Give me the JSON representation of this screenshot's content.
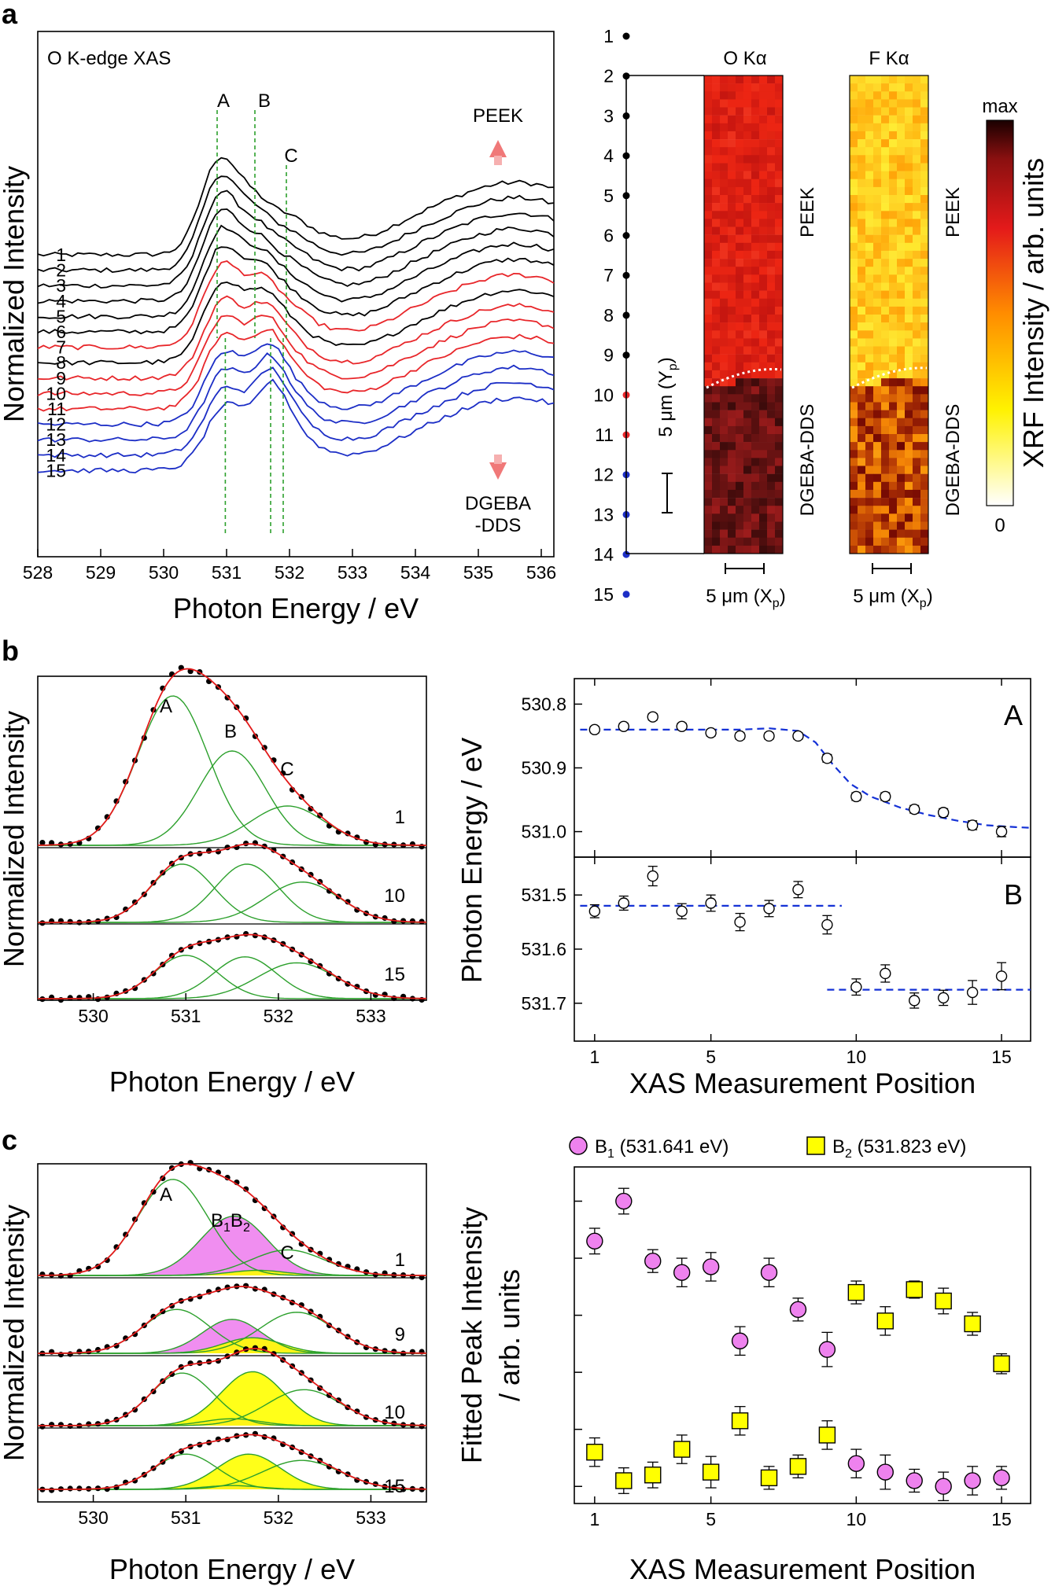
{
  "panel_labels": [
    "a",
    "b",
    "c"
  ],
  "colors": {
    "black": "#000000",
    "red": "#e8262a",
    "blue": "#1c2ec6",
    "green": "#2ca02c",
    "fit": "#e21a1a",
    "magenta": "#ee82ee",
    "yellow": "#ffff00",
    "dash": "#1431d6"
  },
  "chart_data": [
    {
      "id": "a_xas",
      "type": "line",
      "title": "O K-edge XAS",
      "xlabel": "Photon Energy / eV",
      "ylabel": "Normalized Intensity",
      "xlim": [
        528.0,
        536.2
      ],
      "xticks": [
        528,
        529,
        530,
        531,
        532,
        533,
        534,
        535,
        536
      ],
      "spectra_labels": [
        "1",
        "2",
        "3",
        "4",
        "5",
        "6",
        "7",
        "8",
        "9",
        "10",
        "11",
        "12",
        "13",
        "14",
        "15"
      ],
      "spectra_colors": [
        "black",
        "black",
        "black",
        "black",
        "black",
        "black",
        "red",
        "black",
        "red",
        "red",
        "red",
        "blue",
        "blue",
        "blue",
        "blue"
      ],
      "peak_labels": [
        "A",
        "B",
        "C"
      ],
      "peak_positions_upper": [
        530.85,
        531.45,
        531.95
      ],
      "peak_positions_lower": [
        530.98,
        531.7,
        531.9
      ],
      "arrow_up_label": "PEEK",
      "arrow_down_label_1": "DGEBA",
      "arrow_down_label_2": "-DDS"
    },
    {
      "id": "a_maps",
      "type": "heatmap",
      "maps": [
        {
          "title": "O Kα",
          "palette": "red-dark"
        },
        {
          "title": "F Kα",
          "palette": "yellow-red"
        }
      ],
      "positions": [
        "1",
        "2",
        "3",
        "4",
        "5",
        "6",
        "7",
        "8",
        "9",
        "10",
        "11",
        "12",
        "13",
        "14",
        "15"
      ],
      "position_colors": [
        "black",
        "black",
        "black",
        "black",
        "black",
        "black",
        "black",
        "black",
        "black",
        "red",
        "red",
        "blue",
        "blue",
        "blue",
        "blue"
      ],
      "region_upper": "PEEK",
      "region_lower": "DGEBA-DDS",
      "scalebar_y_label": "5 μm (Y",
      "scalebar_y_sub": "p",
      "scalebar_x_label": "5 μm (X",
      "scalebar_x_sub": "p",
      "colorbar_label": "XRF Intensity / arb. units",
      "colorbar_max": "max",
      "colorbar_min": "0"
    },
    {
      "id": "b_fit",
      "type": "line",
      "xlabel": "Photon Energy / eV",
      "ylabel": "Normalized Intensity",
      "xlim": [
        529.4,
        533.6
      ],
      "xticks": [
        530,
        531,
        532,
        533
      ],
      "peak_labels": [
        "A",
        "B",
        "C"
      ],
      "spectra": [
        {
          "label": "1",
          "peaks": [
            {
              "center": 530.86,
              "height": 0.95,
              "width": 0.38
            },
            {
              "center": 531.5,
              "height": 0.6,
              "width": 0.36
            },
            {
              "center": 532.1,
              "height": 0.25,
              "width": 0.4
            }
          ]
        },
        {
          "label": "10",
          "peaks": [
            {
              "center": 530.96,
              "height": 0.78,
              "width": 0.34
            },
            {
              "center": 531.66,
              "height": 0.78,
              "width": 0.34
            },
            {
              "center": 532.26,
              "height": 0.54,
              "width": 0.4
            }
          ]
        },
        {
          "label": "15",
          "peaks": [
            {
              "center": 531.0,
              "height": 0.58,
              "width": 0.34
            },
            {
              "center": 531.64,
              "height": 0.56,
              "width": 0.34
            },
            {
              "center": 532.2,
              "height": 0.48,
              "width": 0.42
            }
          ]
        }
      ]
    },
    {
      "id": "b_positions",
      "type": "scatter",
      "xlabel": "XAS Measurement Position",
      "ylabel": "Photon Energy / eV",
      "xlim": [
        0.3,
        16.0
      ],
      "xticks": [
        1,
        5,
        10,
        15
      ],
      "top": {
        "label": "A",
        "ylim": [
          530.76,
          531.04
        ],
        "yticks": [
          "530.8",
          "530.9",
          "531.0"
        ],
        "ytick_values": [
          530.8,
          530.9,
          531.0
        ],
        "x": [
          1,
          2,
          3,
          4,
          5,
          6,
          7,
          8,
          9,
          10,
          11,
          12,
          13,
          14,
          15
        ],
        "y": [
          530.84,
          530.835,
          530.82,
          530.835,
          530.845,
          530.85,
          530.85,
          530.85,
          530.885,
          530.945,
          530.945,
          530.965,
          530.97,
          530.99,
          531.0
        ],
        "err": [
          0.005,
          0.005,
          0.005,
          0.005,
          0.005,
          0.005,
          0.005,
          0.005,
          0.006,
          0.006,
          0.006,
          0.006,
          0.006,
          0.007,
          0.008
        ],
        "fit_x": [
          0.5,
          1,
          2,
          3,
          4,
          5,
          6,
          7,
          8,
          8.6,
          9.2,
          9.8,
          10.5,
          11.5,
          12.5,
          13.5,
          14.5,
          15.5,
          16
        ],
        "fit_y": [
          530.84,
          530.84,
          530.84,
          530.84,
          530.84,
          530.84,
          530.84,
          530.838,
          530.842,
          530.86,
          530.895,
          530.925,
          530.945,
          530.962,
          530.974,
          530.983,
          530.99,
          530.993,
          530.994
        ]
      },
      "bottom": {
        "label": "B",
        "ylim": [
          531.43,
          531.77
        ],
        "yticks": [
          "531.5",
          "531.6",
          "531.7"
        ],
        "ytick_values": [
          531.5,
          531.6,
          531.7
        ],
        "x": [
          1,
          2,
          3,
          4,
          5,
          6,
          7,
          8,
          9,
          10,
          11,
          12,
          13,
          14,
          15
        ],
        "y": [
          531.53,
          531.515,
          531.465,
          531.53,
          531.515,
          531.55,
          531.525,
          531.49,
          531.555,
          531.67,
          531.645,
          531.695,
          531.69,
          531.68,
          531.65
        ],
        "err": [
          0.012,
          0.013,
          0.018,
          0.014,
          0.015,
          0.016,
          0.015,
          0.015,
          0.017,
          0.015,
          0.016,
          0.014,
          0.014,
          0.022,
          0.025
        ],
        "fit1_x": [
          0.5,
          9.5
        ],
        "fit1_y": [
          531.52,
          531.52
        ],
        "fit2_x": [
          9.0,
          16.0
        ],
        "fit2_y": [
          531.675,
          531.675
        ]
      }
    },
    {
      "id": "c_fit",
      "type": "line",
      "xlabel": "Photon Energy / eV",
      "ylabel": "Normalized Intensity",
      "xlim": [
        529.4,
        533.6
      ],
      "xticks": [
        530,
        531,
        532,
        533
      ],
      "peak_labels": [
        "A",
        "B1",
        "B2",
        "C"
      ],
      "spectra": [
        {
          "label": "1",
          "peaks": [
            {
              "center": 530.86,
              "height": 0.94,
              "width": 0.38,
              "fill": "none"
            },
            {
              "center": 531.52,
              "height": 0.58,
              "width": 0.36,
              "fill": "magenta"
            },
            {
              "center": 531.78,
              "height": 0.05,
              "width": 0.3,
              "fill": "yellow"
            },
            {
              "center": 532.1,
              "height": 0.25,
              "width": 0.4,
              "fill": "none"
            }
          ]
        },
        {
          "label": "9",
          "peaks": [
            {
              "center": 530.9,
              "height": 0.62,
              "width": 0.36,
              "fill": "none"
            },
            {
              "center": 531.5,
              "height": 0.48,
              "width": 0.32,
              "fill": "magenta"
            },
            {
              "center": 531.72,
              "height": 0.22,
              "width": 0.32,
              "fill": "yellow"
            },
            {
              "center": 532.2,
              "height": 0.58,
              "width": 0.4,
              "fill": "none"
            }
          ]
        },
        {
          "label": "10",
          "peaks": [
            {
              "center": 530.96,
              "height": 0.76,
              "width": 0.34,
              "fill": "none"
            },
            {
              "center": 531.5,
              "height": 0.1,
              "width": 0.3,
              "fill": "magenta"
            },
            {
              "center": 531.72,
              "height": 0.78,
              "width": 0.34,
              "fill": "yellow"
            },
            {
              "center": 532.28,
              "height": 0.52,
              "width": 0.4,
              "fill": "none"
            }
          ]
        },
        {
          "label": "15",
          "peaks": [
            {
              "center": 531.0,
              "height": 0.56,
              "width": 0.34,
              "fill": "none"
            },
            {
              "center": 531.5,
              "height": 0.06,
              "width": 0.3,
              "fill": "magenta"
            },
            {
              "center": 531.68,
              "height": 0.56,
              "width": 0.34,
              "fill": "yellow"
            },
            {
              "center": 532.25,
              "height": 0.46,
              "width": 0.42,
              "fill": "none"
            }
          ]
        }
      ]
    },
    {
      "id": "c_intensity",
      "type": "scatter",
      "xlabel": "XAS Measurement Position",
      "ylabel_line1": "Fitted Peak Intensity",
      "ylabel_line2": "/ arb. units",
      "xlim": [
        0.3,
        16.0
      ],
      "xticks": [
        1,
        5,
        10,
        15
      ],
      "ylim": [
        -0.06,
        1.12
      ],
      "ytick_values": [
        0.0,
        0.2,
        0.4,
        0.6,
        0.8,
        1.0
      ],
      "legend": [
        {
          "name": "B",
          "sub": "1",
          "value": " (531.641 eV)",
          "color": "magenta",
          "marker": "circle"
        },
        {
          "name": "B",
          "sub": "2",
          "value": " (531.823 eV)",
          "color": "yellow",
          "marker": "square"
        }
      ],
      "series": [
        {
          "name": "B1",
          "x": [
            1,
            2,
            3,
            4,
            5,
            6,
            7,
            8,
            9,
            10,
            11,
            12,
            13,
            14,
            15
          ],
          "y": [
            0.86,
            1.0,
            0.79,
            0.75,
            0.77,
            0.51,
            0.75,
            0.62,
            0.48,
            0.08,
            0.05,
            0.02,
            0.0,
            0.02,
            0.03
          ],
          "err": [
            0.045,
            0.045,
            0.04,
            0.05,
            0.05,
            0.05,
            0.05,
            0.04,
            0.06,
            0.05,
            0.06,
            0.04,
            0.05,
            0.05,
            0.04
          ]
        },
        {
          "name": "B2",
          "x": [
            1,
            2,
            3,
            4,
            5,
            6,
            7,
            8,
            9,
            10,
            11,
            12,
            13,
            14,
            15
          ],
          "y": [
            0.12,
            0.02,
            0.04,
            0.13,
            0.05,
            0.23,
            0.03,
            0.07,
            0.18,
            0.68,
            0.58,
            0.69,
            0.65,
            0.57,
            0.43
          ],
          "err": [
            0.05,
            0.045,
            0.045,
            0.05,
            0.055,
            0.05,
            0.04,
            0.04,
            0.05,
            0.04,
            0.05,
            0.03,
            0.045,
            0.04,
            0.035
          ]
        }
      ]
    }
  ]
}
